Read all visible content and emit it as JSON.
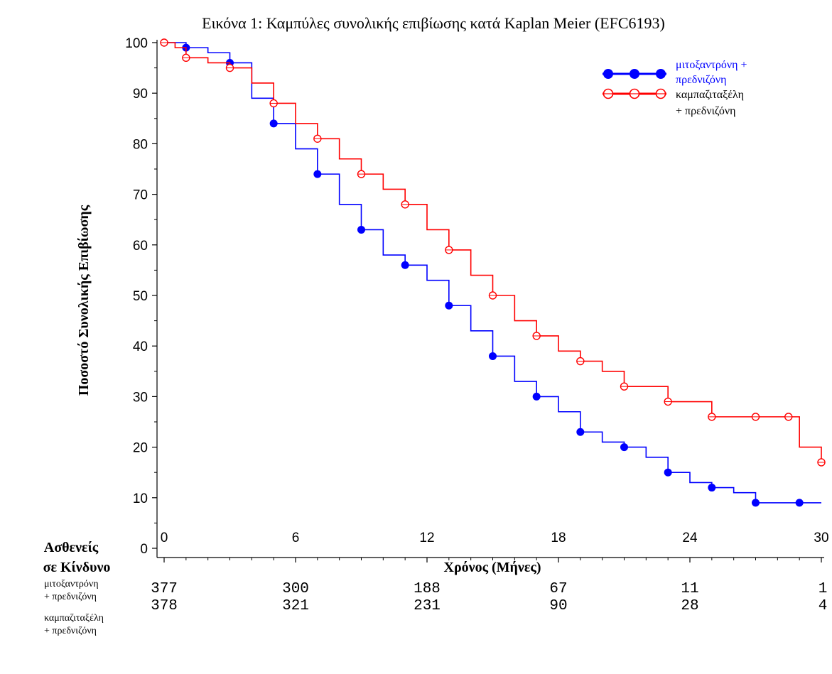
{
  "chart_data": {
    "type": "line",
    "title": "Εικόνα 1: Καμπύλες συνολικής επιβίωσης κατά Kaplan Meier (EFC6193)",
    "xlabel": "Χρόνος (Μήνες)",
    "ylabel": "Ποσοστό Συνολικής Επιβίωσης",
    "xlim": [
      0,
      30
    ],
    "ylim": [
      0,
      100
    ],
    "x_ticks": [
      0,
      6,
      12,
      18,
      24,
      30
    ],
    "y_ticks": [
      0,
      10,
      20,
      30,
      40,
      50,
      60,
      70,
      80,
      90,
      100
    ],
    "legend_position": "top-right",
    "series": [
      {
        "name": "μιτοξαντρόνη + πρεδνιζόνη",
        "color": "#0000ff",
        "marker": "filled-circle",
        "x": [
          0,
          0.5,
          1,
          2,
          3,
          4,
          5,
          6,
          7,
          8,
          9,
          10,
          11,
          12,
          13,
          14,
          15,
          16,
          17,
          18,
          19,
          20,
          21,
          22,
          23,
          24,
          25,
          26,
          27,
          28,
          29,
          30
        ],
        "y": [
          100,
          100,
          99,
          98,
          96,
          89,
          84,
          79,
          74,
          68,
          63,
          58,
          56,
          53,
          48,
          43,
          38,
          33,
          30,
          27,
          23,
          21,
          20,
          18,
          15,
          13,
          12,
          11,
          9,
          9,
          9,
          9
        ]
      },
      {
        "name": "καμπαζιταξέλη + πρεδνιζόνη",
        "color": "#ff0000",
        "marker": "open-circle",
        "x": [
          0,
          0.5,
          1,
          2,
          3,
          4,
          5,
          6,
          7,
          8,
          9,
          10,
          11,
          12,
          13,
          14,
          15,
          16,
          17,
          18,
          19,
          20,
          21,
          22,
          23,
          24,
          25,
          26,
          27,
          28,
          28.5,
          29,
          30
        ],
        "y": [
          100,
          99,
          97,
          96,
          95,
          92,
          88,
          84,
          81,
          77,
          74,
          71,
          68,
          63,
          59,
          54,
          50,
          45,
          42,
          39,
          37,
          35,
          32,
          32,
          29,
          29,
          26,
          26,
          26,
          26,
          26,
          20,
          17
        ]
      }
    ],
    "risk_table": {
      "heading": [
        "Ασθενείς",
        "σε Κίνδυνο"
      ],
      "times": [
        0,
        6,
        12,
        18,
        24,
        30
      ],
      "rows": [
        {
          "label": "μιτοξαντρόνη + πρεδνιζόνη",
          "counts": [
            "377",
            "300",
            "188",
            "67",
            "11",
            "1"
          ]
        },
        {
          "label": "καμπαζιταξέλη + πρεδνιζόνη",
          "counts": [
            "378",
            "321",
            "231",
            "90",
            "28",
            "4"
          ]
        }
      ]
    }
  }
}
